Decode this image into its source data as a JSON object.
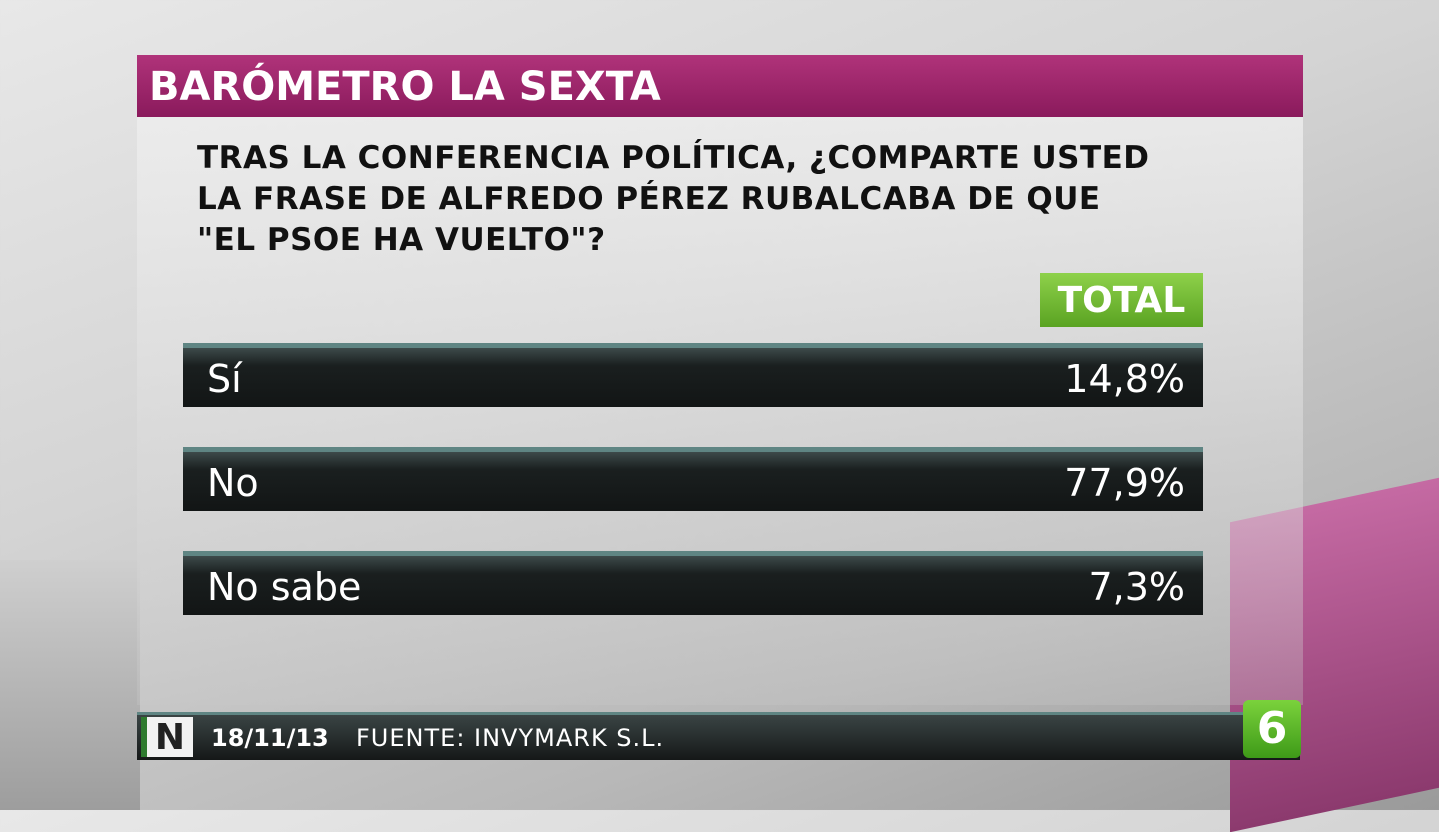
{
  "header": {
    "title": "BARÓMETRO LA SEXTA"
  },
  "question": {
    "lines": [
      "TRAS LA CONFERENCIA POLÍTICA, ¿COMPARTE USTED",
      "LA FRASE DE ALFREDO PÉREZ RUBALCABA DE QUE",
      "\"EL PSOE HA VUELTO\"?"
    ]
  },
  "table": {
    "column_header": "TOTAL",
    "rows": [
      [
        "Sí",
        "14,8%"
      ],
      [
        "No",
        "77,9%"
      ],
      [
        "No sabe",
        "7,3%"
      ]
    ]
  },
  "footer": {
    "logo": "N",
    "date": "18/11/13",
    "source": "FUENTE: INVYMARK S.L.",
    "channel_logo": "6"
  }
}
